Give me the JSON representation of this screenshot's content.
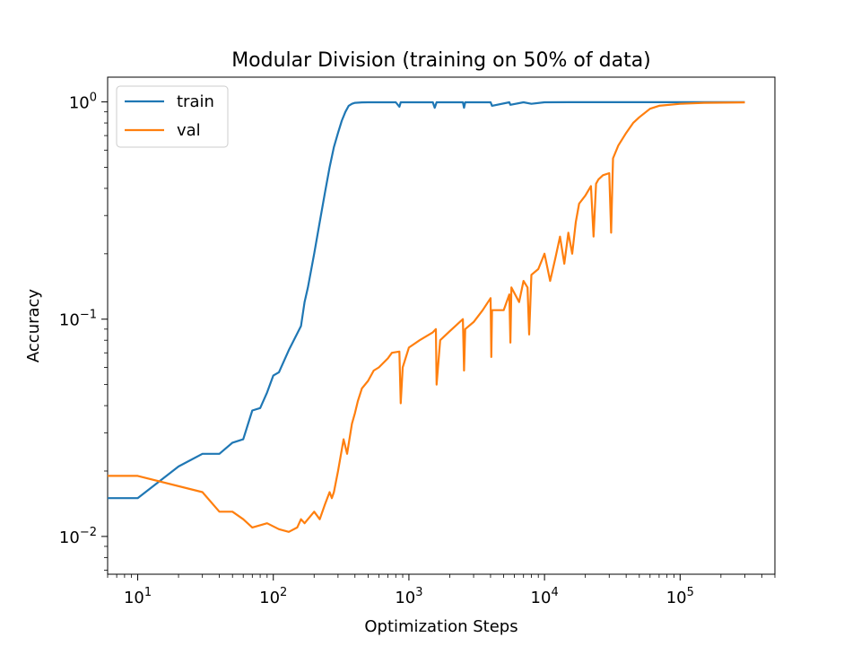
{
  "chart_data": {
    "type": "line",
    "title": "Modular Division (training on 50% of data)",
    "xlabel": "Optimization Steps",
    "ylabel": "Accuracy",
    "xscale": "log",
    "yscale": "log",
    "xlim": [
      6,
      500000
    ],
    "ylim": [
      0.0067,
      1.3
    ],
    "grid": false,
    "legend_position": "top-left",
    "x_ticks": [
      {
        "value": 10,
        "base": "10",
        "exp": "1"
      },
      {
        "value": 100,
        "base": "10",
        "exp": "2"
      },
      {
        "value": 1000,
        "base": "10",
        "exp": "3"
      },
      {
        "value": 10000,
        "base": "10",
        "exp": "4"
      },
      {
        "value": 100000,
        "base": "10",
        "exp": "5"
      }
    ],
    "y_ticks": [
      {
        "value": 0.01,
        "base": "10",
        "exp": "−2"
      },
      {
        "value": 0.1,
        "base": "10",
        "exp": "−1"
      },
      {
        "value": 1,
        "base": "10",
        "exp": "0"
      }
    ],
    "series": [
      {
        "name": "train",
        "color": "#1f77b4",
        "x": [
          6,
          10,
          20,
          30,
          40,
          50,
          60,
          70,
          80,
          90,
          100,
          110,
          130,
          160,
          170,
          180,
          200,
          220,
          240,
          260,
          280,
          300,
          320,
          340,
          360,
          380,
          400,
          450,
          500,
          600,
          700,
          800,
          850,
          870,
          900,
          1000,
          1500,
          1550,
          1600,
          2000,
          2500,
          2550,
          2600,
          3000,
          4000,
          4100,
          5500,
          5600,
          7000,
          8000,
          10000,
          15000,
          20000,
          30000,
          50000,
          100000,
          200000,
          300000
        ],
        "y": [
          0.015,
          0.015,
          0.021,
          0.024,
          0.024,
          0.027,
          0.028,
          0.038,
          0.039,
          0.046,
          0.055,
          0.057,
          0.072,
          0.093,
          0.12,
          0.14,
          0.2,
          0.28,
          0.38,
          0.5,
          0.62,
          0.72,
          0.82,
          0.9,
          0.96,
          0.98,
          0.99,
          0.995,
          0.996,
          0.996,
          0.996,
          0.996,
          0.95,
          0.996,
          0.996,
          0.996,
          0.996,
          0.94,
          0.996,
          0.996,
          0.996,
          0.94,
          0.996,
          0.996,
          0.996,
          0.96,
          0.996,
          0.97,
          0.996,
          0.98,
          0.996,
          0.997,
          0.997,
          0.997,
          0.997,
          0.997,
          0.997,
          0.997
        ]
      },
      {
        "name": "val",
        "color": "#ff7f0e",
        "x": [
          6,
          10,
          30,
          40,
          50,
          60,
          70,
          90,
          110,
          130,
          150,
          160,
          170,
          180,
          200,
          220,
          240,
          260,
          270,
          280,
          300,
          330,
          350,
          380,
          400,
          420,
          450,
          500,
          550,
          600,
          700,
          750,
          850,
          870,
          900,
          1000,
          1200,
          1500,
          1580,
          1600,
          1700,
          2000,
          2500,
          2550,
          2600,
          3000,
          3500,
          4000,
          4050,
          4100,
          5000,
          5500,
          5600,
          5700,
          6500,
          7000,
          7500,
          7700,
          8000,
          9000,
          10000,
          11000,
          12000,
          13000,
          14000,
          15000,
          16000,
          17000,
          18000,
          20000,
          22000,
          23000,
          24000,
          25000,
          27000,
          30000,
          31000,
          32000,
          35000,
          40000,
          45000,
          50000,
          60000,
          70000,
          100000,
          150000,
          300000
        ],
        "y": [
          0.019,
          0.019,
          0.016,
          0.013,
          0.013,
          0.012,
          0.011,
          0.0115,
          0.0108,
          0.0105,
          0.011,
          0.012,
          0.0115,
          0.012,
          0.013,
          0.012,
          0.014,
          0.016,
          0.015,
          0.016,
          0.02,
          0.028,
          0.024,
          0.033,
          0.037,
          0.042,
          0.048,
          0.052,
          0.058,
          0.06,
          0.066,
          0.07,
          0.071,
          0.041,
          0.06,
          0.074,
          0.08,
          0.087,
          0.09,
          0.05,
          0.08,
          0.088,
          0.1,
          0.058,
          0.09,
          0.097,
          0.11,
          0.125,
          0.067,
          0.11,
          0.11,
          0.13,
          0.078,
          0.14,
          0.12,
          0.15,
          0.14,
          0.085,
          0.16,
          0.17,
          0.2,
          0.15,
          0.19,
          0.24,
          0.18,
          0.25,
          0.2,
          0.28,
          0.34,
          0.37,
          0.41,
          0.24,
          0.42,
          0.44,
          0.46,
          0.47,
          0.25,
          0.55,
          0.63,
          0.72,
          0.8,
          0.85,
          0.93,
          0.96,
          0.98,
          0.99,
          0.995
        ]
      }
    ]
  }
}
